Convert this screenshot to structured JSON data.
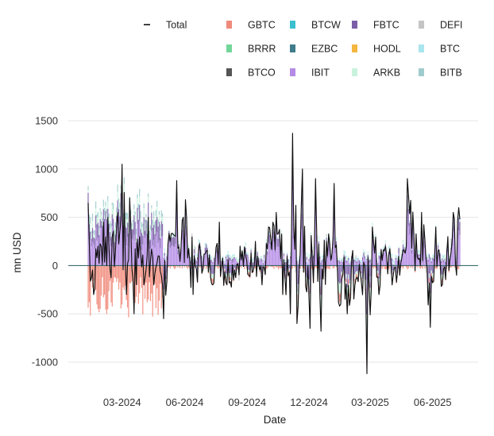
{
  "chart_data": {
    "type": "bar",
    "title": "",
    "xlabel": "Date",
    "ylabel": "mn USD",
    "ylim": [
      -1200,
      1600
    ],
    "yticks": [
      -1000,
      -500,
      0,
      500,
      1000,
      1500
    ],
    "x_range": [
      "2024-01-11",
      "2025-07-11"
    ],
    "xticks": [
      {
        "date": "2024-03-01",
        "label": "03-2024"
      },
      {
        "date": "2024-06-01",
        "label": "06-2024"
      },
      {
        "date": "2024-09-01",
        "label": "09-2024"
      },
      {
        "date": "2024-12-01",
        "label": "12-2024"
      },
      {
        "date": "2025-03-01",
        "label": "03-2025"
      },
      {
        "date": "2025-06-01",
        "label": "06-2025"
      }
    ],
    "grid": true,
    "legend_position": "top",
    "legend": [
      {
        "name": "Total",
        "type": "line",
        "color": "#111111"
      },
      {
        "name": "GBTC",
        "color": "#f08a7a"
      },
      {
        "name": "BTCW",
        "color": "#3bbfcf"
      },
      {
        "name": "FBTC",
        "color": "#7b5ea8"
      },
      {
        "name": "DEFI",
        "color": "#c4c4c4"
      },
      {
        "name": "BRRR",
        "color": "#72d69a"
      },
      {
        "name": "EZBC",
        "color": "#3f7c8c"
      },
      {
        "name": "HODL",
        "color": "#f5b640"
      },
      {
        "name": "BTC",
        "color": "#a9e5ec"
      },
      {
        "name": "BTCO",
        "color": "#555555"
      },
      {
        "name": "IBIT",
        "color": "#b48be6"
      },
      {
        "name": "ARKB",
        "color": "#c9f2dd"
      },
      {
        "name": "BITB",
        "color": "#9fcccd"
      }
    ],
    "series": [
      {
        "name": "Total",
        "x": [
          "2024-01-11",
          "2024-01-19",
          "2024-01-26",
          "2024-02-02",
          "2024-02-09",
          "2024-02-16",
          "2024-02-23",
          "2024-03-01",
          "2024-03-08",
          "2024-03-12",
          "2024-03-19",
          "2024-03-26",
          "2024-04-02",
          "2024-04-09",
          "2024-04-16",
          "2024-04-23",
          "2024-05-01",
          "2024-05-10",
          "2024-05-21",
          "2024-06-04",
          "2024-06-14",
          "2024-06-24",
          "2024-07-02",
          "2024-07-12",
          "2024-07-22",
          "2024-08-02",
          "2024-08-12",
          "2024-08-22",
          "2024-09-03",
          "2024-09-13",
          "2024-09-23",
          "2024-10-03",
          "2024-10-14",
          "2024-10-24",
          "2024-11-04",
          "2024-11-07",
          "2024-11-14",
          "2024-11-21",
          "2024-12-02",
          "2024-12-10",
          "2024-12-18",
          "2024-12-27",
          "2025-01-07",
          "2025-01-17",
          "2025-01-27",
          "2025-02-06",
          "2025-02-18",
          "2025-02-25",
          "2025-03-04",
          "2025-03-14",
          "2025-03-24",
          "2025-04-03",
          "2025-04-14",
          "2025-04-24",
          "2025-05-05",
          "2025-05-15",
          "2025-05-28",
          "2025-06-06",
          "2025-06-16",
          "2025-06-24",
          "2025-07-02",
          "2025-07-10"
        ],
        "y": [
          650,
          -300,
          200,
          450,
          500,
          300,
          550,
          1050,
          -300,
          700,
          -500,
          300,
          -200,
          500,
          -200,
          100,
          -550,
          250,
          880,
          500,
          -300,
          100,
          150,
          -200,
          450,
          -200,
          -150,
          200,
          -100,
          250,
          -200,
          400,
          550,
          -300,
          -500,
          1370,
          -600,
          1000,
          -650,
          900,
          -680,
          250,
          850,
          -400,
          -500,
          -200,
          -300,
          -1120,
          400,
          -300,
          200,
          -200,
          -100,
          900,
          300,
          550,
          -640,
          400,
          -200,
          300,
          550,
          600
        ]
      }
    ],
    "bar_series": [
      "GBTC",
      "IBIT",
      "FBTC",
      "ARKB",
      "BITB",
      "BTC",
      "DEFI",
      "BTCW",
      "HODL"
    ]
  }
}
